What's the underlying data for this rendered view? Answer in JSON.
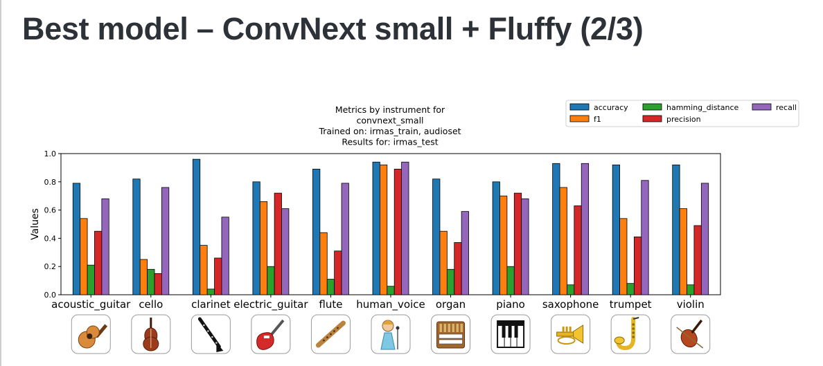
{
  "slide": {
    "title": "Best model – ConvNext small + Fluffy (2/3)"
  },
  "chart_data": {
    "type": "bar",
    "title_lines": [
      "Metrics by instrument for",
      "convnext_small",
      "Trained on: irmas_train, audioset",
      "Results for: irmas_test"
    ],
    "xlabel": "",
    "ylabel": "Values",
    "ylim": [
      0,
      1.0
    ],
    "yticks": [
      "0.0",
      "0.2",
      "0.4",
      "0.6",
      "0.8",
      "1.0"
    ],
    "grid": false,
    "legend_position": "top-right",
    "categories": [
      "acoustic_guitar",
      "cello",
      "clarinet",
      "electric_guitar",
      "flute",
      "human_voice",
      "organ",
      "piano",
      "saxophone",
      "trumpet",
      "violin"
    ],
    "series": [
      {
        "name": "accuracy",
        "color": "#1f77b4",
        "values": [
          0.79,
          0.82,
          0.96,
          0.8,
          0.89,
          0.94,
          0.82,
          0.8,
          0.93,
          0.92,
          0.92
        ]
      },
      {
        "name": "f1",
        "color": "#ff7f0e",
        "values": [
          0.54,
          0.25,
          0.35,
          0.66,
          0.44,
          0.92,
          0.45,
          0.7,
          0.76,
          0.54,
          0.61
        ]
      },
      {
        "name": "hamming_distance",
        "color": "#2ca02c",
        "values": [
          0.21,
          0.18,
          0.04,
          0.2,
          0.11,
          0.06,
          0.18,
          0.2,
          0.07,
          0.08,
          0.07
        ]
      },
      {
        "name": "precision",
        "color": "#d62728",
        "values": [
          0.45,
          0.15,
          0.26,
          0.72,
          0.31,
          0.89,
          0.37,
          0.72,
          0.63,
          0.41,
          0.49
        ]
      },
      {
        "name": "recall",
        "color": "#9467bd",
        "values": [
          0.68,
          0.76,
          0.55,
          0.61,
          0.79,
          0.94,
          0.59,
          0.68,
          0.93,
          0.81,
          0.79
        ]
      }
    ],
    "category_icons": [
      "acoustic-guitar-icon",
      "cello-icon",
      "clarinet-icon",
      "electric-guitar-icon",
      "flute-icon",
      "singer-icon",
      "organ-icon",
      "piano-keys-icon",
      "trumpet-icon",
      "saxophone-icon",
      "violin-icon"
    ]
  }
}
